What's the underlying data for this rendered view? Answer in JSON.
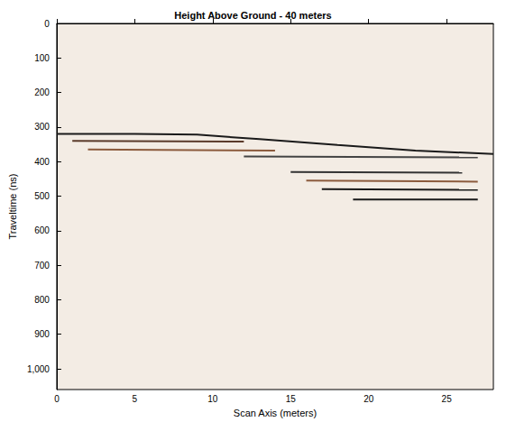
{
  "chart_data": {
    "type": "line",
    "title": "Height Above Ground - 40 meters",
    "x_label": "Scan Axis (meters)",
    "y_label": "Traveltime (ns)",
    "xlim": [
      0,
      28
    ],
    "xticks": [
      0,
      5,
      10,
      15,
      20,
      25
    ],
    "ylim": [
      0,
      1060
    ],
    "yticks": [
      0,
      100,
      200,
      300,
      400,
      500,
      600,
      700,
      800,
      900,
      1000
    ],
    "grid": false,
    "series": [
      {
        "color": "#1a1a1a",
        "x": [
          0,
          5,
          9,
          13,
          18,
          23,
          28
        ],
        "values": [
          320,
          320,
          322,
          335,
          352,
          368,
          378
        ]
      },
      {
        "color": "#5a3a2a",
        "x": [
          1,
          12
        ],
        "values": [
          340,
          342
        ]
      },
      {
        "color": "#8b5a3c",
        "x": [
          2,
          14
        ],
        "values": [
          365,
          368
        ]
      },
      {
        "color": "#444444",
        "x": [
          12,
          27
        ],
        "values": [
          385,
          388
        ]
      },
      {
        "color": "#333333",
        "x": [
          15,
          26
        ],
        "values": [
          430,
          432
        ]
      },
      {
        "color": "#8b5a3c",
        "x": [
          16,
          27
        ],
        "values": [
          455,
          458
        ]
      },
      {
        "color": "#1a1a1a",
        "x": [
          17,
          27
        ],
        "values": [
          480,
          482
        ]
      },
      {
        "color": "#1a1a1a",
        "x": [
          19,
          27
        ],
        "values": [
          510,
          510
        ]
      }
    ]
  }
}
